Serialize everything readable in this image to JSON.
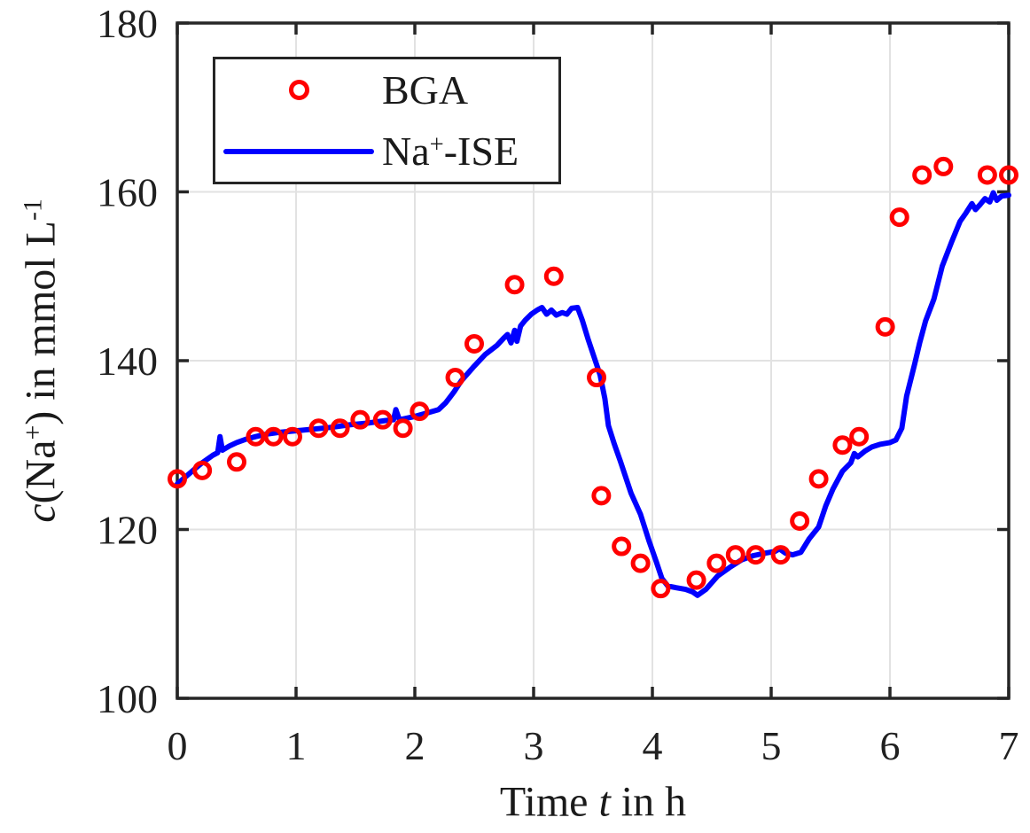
{
  "style": {
    "background": "#FFFFFF",
    "axis_color": "#262626",
    "grid_color": "#E2E2E2",
    "text_color": "#202020",
    "bga_color": "#FF0000",
    "ise_color": "#0000FF"
  },
  "chart_data": {
    "type": "line",
    "title": "",
    "xlabel": "Time t in h",
    "ylabel": "c(Na+) in mmol L^-1",
    "xlabel_parts": {
      "pre": "Time ",
      "var": "t",
      "post": " in h"
    },
    "ylabel_parts": {
      "var": "c",
      "open": "(Na",
      "sup_ion": "+",
      "mid": ") in mmol L",
      "sup_exp": "-1"
    },
    "xlim": [
      0,
      7
    ],
    "ylim": [
      100,
      180
    ],
    "xticks": [
      "0",
      "1",
      "2",
      "3",
      "4",
      "5",
      "6",
      "7"
    ],
    "yticks": [
      "100",
      "120",
      "140",
      "160",
      "180"
    ],
    "grid": true,
    "legend": {
      "position": "top-left",
      "entries": [
        {
          "label": "BGA",
          "marker": "open-circle",
          "color": "#FF0000"
        },
        {
          "label_parts": {
            "base": "Na",
            "sup": "+",
            "post": "-ISE"
          },
          "marker": "solid-line",
          "color": "#0000FF"
        }
      ]
    },
    "series": [
      {
        "name": "BGA",
        "plot": "scatter",
        "marker": "open-circle",
        "color": "#FF0000",
        "t": [
          0.0,
          0.21,
          0.5,
          0.66,
          0.81,
          0.97,
          1.19,
          1.37,
          1.54,
          1.73,
          1.9,
          2.04,
          2.34,
          2.5,
          2.84,
          3.17,
          3.53,
          3.57,
          3.74,
          3.9,
          4.07,
          4.37,
          4.54,
          4.7,
          4.87,
          5.08,
          5.24,
          5.4,
          5.6,
          5.74,
          5.96,
          6.08,
          6.27,
          6.45,
          6.82,
          7.0
        ],
        "c": [
          126,
          127,
          128,
          131,
          131,
          131,
          132,
          132,
          133,
          133,
          132,
          134,
          138,
          142,
          149,
          150,
          138,
          124,
          118,
          116,
          113,
          114,
          116,
          117,
          117,
          117,
          121,
          126,
          130,
          131,
          144,
          157,
          162,
          163,
          162,
          162
        ]
      },
      {
        "name": "Na+-ISE",
        "plot": "line",
        "color": "#0000FF",
        "points": [
          [
            0.0,
            125.4
          ],
          [
            0.05,
            126.0
          ],
          [
            0.1,
            126.6
          ],
          [
            0.15,
            127.2
          ],
          [
            0.2,
            127.8
          ],
          [
            0.25,
            128.3
          ],
          [
            0.3,
            128.8
          ],
          [
            0.34,
            129.1
          ],
          [
            0.36,
            131.0
          ],
          [
            0.38,
            129.4
          ],
          [
            0.44,
            129.9
          ],
          [
            0.5,
            130.3
          ],
          [
            0.58,
            130.7
          ],
          [
            0.66,
            131.0
          ],
          [
            0.75,
            131.3
          ],
          [
            0.85,
            131.5
          ],
          [
            1.0,
            131.7
          ],
          [
            1.15,
            131.9
          ],
          [
            1.3,
            132.1
          ],
          [
            1.45,
            132.4
          ],
          [
            1.6,
            132.6
          ],
          [
            1.75,
            132.9
          ],
          [
            1.82,
            133.0
          ],
          [
            1.84,
            134.2
          ],
          [
            1.87,
            133.0
          ],
          [
            2.0,
            133.4
          ],
          [
            2.1,
            133.8
          ],
          [
            2.2,
            134.2
          ],
          [
            2.26,
            135.0
          ],
          [
            2.33,
            136.3
          ],
          [
            2.39,
            137.6
          ],
          [
            2.49,
            139.2
          ],
          [
            2.59,
            140.7
          ],
          [
            2.69,
            141.8
          ],
          [
            2.75,
            142.7
          ],
          [
            2.78,
            143.1
          ],
          [
            2.81,
            142.1
          ],
          [
            2.84,
            143.6
          ],
          [
            2.86,
            142.3
          ],
          [
            2.89,
            144.1
          ],
          [
            2.93,
            144.8
          ],
          [
            2.98,
            145.5
          ],
          [
            3.03,
            146.0
          ],
          [
            3.07,
            146.3
          ],
          [
            3.11,
            145.5
          ],
          [
            3.15,
            146.0
          ],
          [
            3.19,
            145.4
          ],
          [
            3.24,
            145.7
          ],
          [
            3.28,
            145.5
          ],
          [
            3.32,
            146.2
          ],
          [
            3.37,
            146.3
          ],
          [
            3.41,
            144.8
          ],
          [
            3.46,
            142.5
          ],
          [
            3.51,
            140.4
          ],
          [
            3.56,
            138.3
          ],
          [
            3.6,
            135.5
          ],
          [
            3.63,
            132.3
          ],
          [
            3.68,
            130.1
          ],
          [
            3.73,
            128.1
          ],
          [
            3.82,
            124.3
          ],
          [
            3.9,
            121.8
          ],
          [
            3.97,
            118.7
          ],
          [
            4.03,
            116.3
          ],
          [
            4.08,
            114.2
          ],
          [
            4.13,
            113.3
          ],
          [
            4.2,
            113.1
          ],
          [
            4.28,
            112.9
          ],
          [
            4.34,
            112.6
          ],
          [
            4.38,
            112.2
          ],
          [
            4.45,
            112.9
          ],
          [
            4.55,
            114.5
          ],
          [
            4.65,
            115.5
          ],
          [
            4.75,
            116.4
          ],
          [
            4.85,
            116.9
          ],
          [
            4.95,
            117.2
          ],
          [
            5.03,
            117.4
          ],
          [
            5.07,
            117.7
          ],
          [
            5.12,
            117.2
          ],
          [
            5.18,
            117.0
          ],
          [
            5.25,
            117.3
          ],
          [
            5.32,
            118.9
          ],
          [
            5.4,
            120.3
          ],
          [
            5.46,
            122.8
          ],
          [
            5.52,
            124.8
          ],
          [
            5.6,
            126.9
          ],
          [
            5.67,
            127.9
          ],
          [
            5.7,
            129.0
          ],
          [
            5.73,
            128.6
          ],
          [
            5.79,
            129.3
          ],
          [
            5.85,
            129.8
          ],
          [
            5.92,
            130.1
          ],
          [
            6.0,
            130.3
          ],
          [
            6.05,
            130.6
          ],
          [
            6.1,
            132.0
          ],
          [
            6.14,
            135.8
          ],
          [
            6.21,
            139.7
          ],
          [
            6.25,
            142.1
          ],
          [
            6.3,
            144.7
          ],
          [
            6.37,
            147.3
          ],
          [
            6.44,
            151.2
          ],
          [
            6.52,
            154.1
          ],
          [
            6.59,
            156.5
          ],
          [
            6.64,
            157.5
          ],
          [
            6.69,
            158.6
          ],
          [
            6.72,
            157.9
          ],
          [
            6.76,
            158.5
          ],
          [
            6.8,
            159.2
          ],
          [
            6.84,
            158.8
          ],
          [
            6.87,
            159.9
          ],
          [
            6.9,
            159.0
          ],
          [
            6.94,
            159.5
          ],
          [
            7.0,
            159.6
          ]
        ]
      }
    ]
  }
}
